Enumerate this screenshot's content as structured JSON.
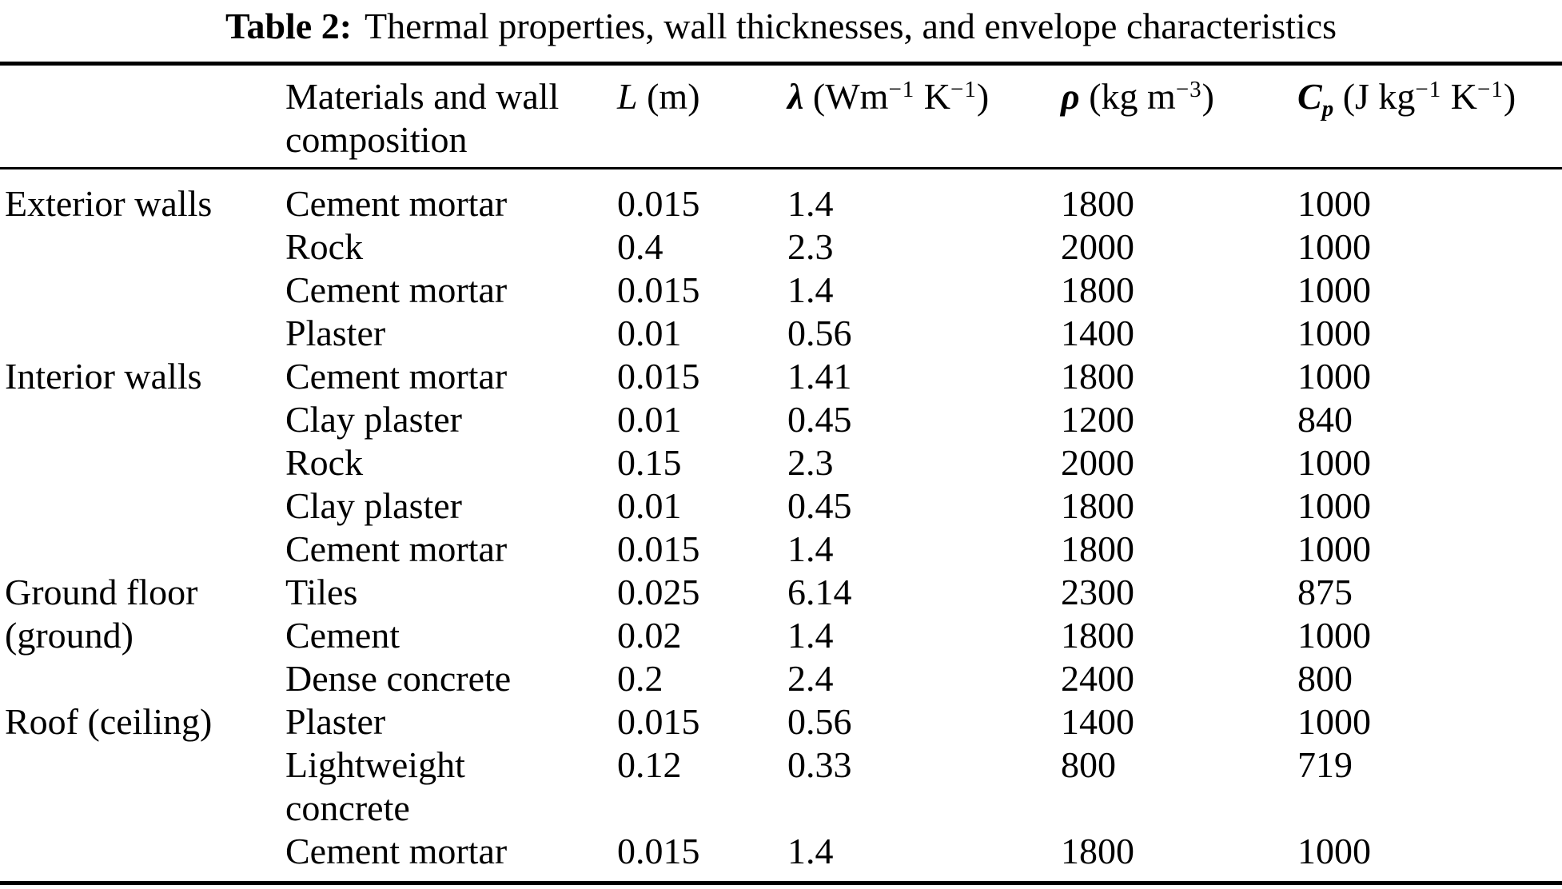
{
  "title": {
    "label": "Table 2:",
    "caption": "Thermal properties, wall thicknesses, and envelope characteristics"
  },
  "table": {
    "columns": [
      {
        "key": "category",
        "tokens": []
      },
      {
        "key": "material",
        "tokens": [
          {
            "s": "n",
            "t": "Materials and wall composition"
          }
        ]
      },
      {
        "key": "L",
        "tokens": [
          {
            "s": "i",
            "t": "L"
          },
          {
            "s": "n",
            "t": " (m)"
          }
        ]
      },
      {
        "key": "lambda",
        "tokens": [
          {
            "s": "bi",
            "t": "λ"
          },
          {
            "s": "n",
            "t": " (Wm"
          },
          {
            "s": "sup",
            "t": "−1"
          },
          {
            "s": "n",
            "t": " K"
          },
          {
            "s": "sup",
            "t": "−1"
          },
          {
            "s": "n",
            "t": ")"
          }
        ]
      },
      {
        "key": "rho",
        "tokens": [
          {
            "s": "bi",
            "t": "ρ"
          },
          {
            "s": "n",
            "t": " (kg m"
          },
          {
            "s": "sup",
            "t": "−3"
          },
          {
            "s": "n",
            "t": ")"
          }
        ]
      },
      {
        "key": "cp",
        "tokens": [
          {
            "s": "bi",
            "t": "C"
          },
          {
            "s": "bisub",
            "t": "p"
          },
          {
            "s": "n",
            "t": " (J kg"
          },
          {
            "s": "sup",
            "t": "−1"
          },
          {
            "s": "n",
            "t": " K"
          },
          {
            "s": "sup",
            "t": "−1"
          },
          {
            "s": "n",
            "t": ")"
          }
        ]
      }
    ],
    "groups": [
      {
        "label": "Exterior walls",
        "rows": [
          {
            "material": "Cement mortar",
            "L": "0.015",
            "lambda": "1.4",
            "rho": "1800",
            "cp": "1000"
          },
          {
            "material": "Rock",
            "L": "0.4",
            "lambda": "2.3",
            "rho": "2000",
            "cp": "1000"
          },
          {
            "material": "Cement mortar",
            "L": "0.015",
            "lambda": "1.4",
            "rho": "1800",
            "cp": "1000"
          },
          {
            "material": "Plaster",
            "L": "0.01",
            "lambda": "0.56",
            "rho": "1400",
            "cp": "1000"
          }
        ]
      },
      {
        "label": "Interior walls",
        "rows": [
          {
            "material": "Cement mortar",
            "L": "0.015",
            "lambda": "1.41",
            "rho": "1800",
            "cp": "1000"
          },
          {
            "material": "Clay plaster",
            "L": "0.01",
            "lambda": "0.45",
            "rho": "1200",
            "cp": "840"
          },
          {
            "material": "Rock",
            "L": "0.15",
            "lambda": "2.3",
            "rho": "2000",
            "cp": "1000"
          },
          {
            "material": "Clay plaster",
            "L": "0.01",
            "lambda": "0.45",
            "rho": "1800",
            "cp": "1000"
          },
          {
            "material": "Cement mortar",
            "L": "0.015",
            "lambda": "1.4",
            "rho": "1800",
            "cp": "1000"
          }
        ]
      },
      {
        "label": "Ground floor (ground)",
        "rows": [
          {
            "material": "Tiles",
            "L": "0.025",
            "lambda": "6.14",
            "rho": "2300",
            "cp": "875"
          },
          {
            "material": "Cement",
            "L": "0.02",
            "lambda": "1.4",
            "rho": "1800",
            "cp": "1000"
          },
          {
            "material": "Dense concrete",
            "L": "0.2",
            "lambda": "2.4",
            "rho": "2400",
            "cp": "800"
          }
        ]
      },
      {
        "label": "Roof (ceiling)",
        "rows": [
          {
            "material": "Plaster",
            "L": "0.015",
            "lambda": "0.56",
            "rho": "1400",
            "cp": "1000"
          },
          {
            "material": "Lightweight concrete",
            "L": "0.12",
            "lambda": "0.33",
            "rho": "800",
            "cp": "719"
          },
          {
            "material": "Cement mortar",
            "L": "0.015",
            "lambda": "1.4",
            "rho": "1800",
            "cp": "1000"
          }
        ]
      }
    ]
  }
}
